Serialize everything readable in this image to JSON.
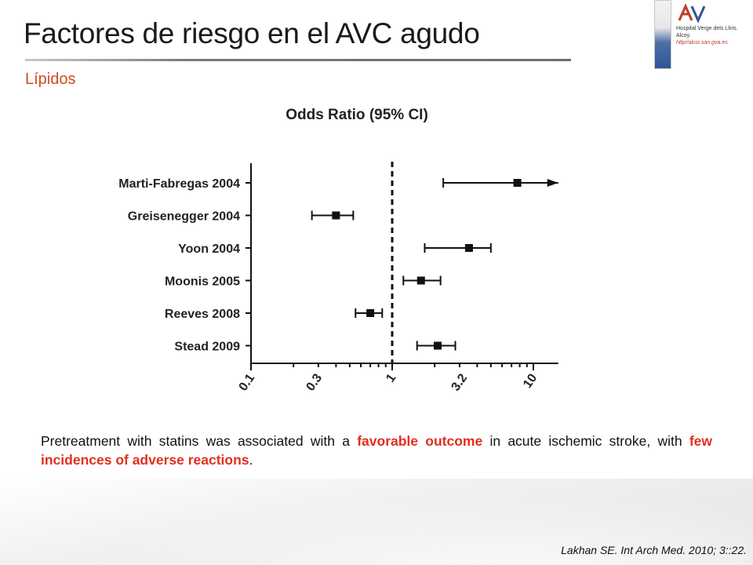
{
  "slide": {
    "title": "Factores de riesgo en el AVC agudo",
    "subtitle": "Lípidos",
    "logo_text": [
      "Hospital Verge dels Lliris.",
      "Alcoy."
    ],
    "logo_url": "http//alcoi.san.gva.es",
    "caption_parts": [
      {
        "text": "Pretreatment with statins was associated with a ",
        "highlight": false
      },
      {
        "text": "favorable outcome",
        "highlight": true
      },
      {
        "text": " in acute ischemic stroke, with ",
        "highlight": false
      },
      {
        "text": "few incidences of adverse reactions",
        "highlight": true
      },
      {
        "text": ".",
        "highlight": false
      }
    ],
    "citation": "Lakhan SE. Int Arch Med. 2010; 3::22."
  },
  "chart_data": {
    "type": "forest",
    "title": "Odds Ratio (95% CI)",
    "xscale": "log",
    "xlim": [
      0.1,
      15
    ],
    "reference_line": 1,
    "xticks": [
      0.1,
      0.3,
      1,
      3.2,
      10
    ],
    "xtick_labels": [
      "0.1",
      "0.3",
      "1",
      "3.2",
      "10"
    ],
    "studies": [
      {
        "name": "Marti-Fabregas 2004",
        "or": 7.7,
        "lower": 2.3,
        "upper": 15,
        "upper_open": true
      },
      {
        "name": "Greisenegger 2004",
        "or": 0.4,
        "lower": 0.27,
        "upper": 0.53
      },
      {
        "name": "Yoon 2004",
        "or": 3.5,
        "lower": 1.7,
        "upper": 5.0
      },
      {
        "name": "Moonis 2005",
        "or": 1.6,
        "lower": 1.2,
        "upper": 2.2
      },
      {
        "name": "Reeves 2008",
        "or": 0.7,
        "lower": 0.55,
        "upper": 0.85
      },
      {
        "name": "Stead 2009",
        "or": 2.1,
        "lower": 1.5,
        "upper": 2.8
      }
    ],
    "colors": {
      "marks": "#111111",
      "reference": "#111111"
    }
  }
}
